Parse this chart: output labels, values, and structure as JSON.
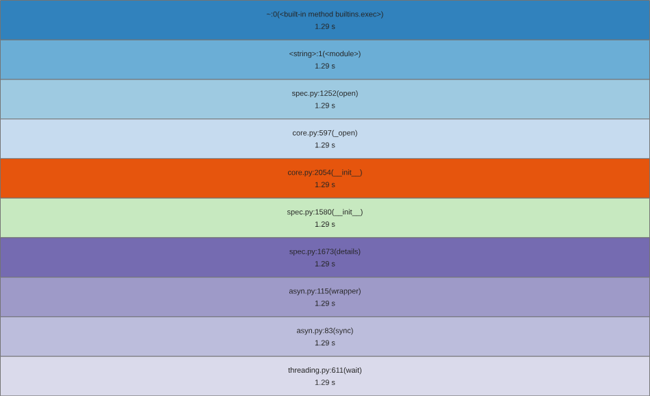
{
  "chart_data": {
    "type": "bar",
    "orientation": "horizontal",
    "categories": [
      "~:0(<built-in method builtins.exec>)",
      "<string>:1(<module>)",
      "spec.py:1252(open)",
      "core.py:597(_open)",
      "core.py:2054(__init__)",
      "spec.py:1580(__init__)",
      "spec.py:1673(details)",
      "asyn.py:115(wrapper)",
      "asyn.py:83(sync)",
      "threading.py:611(wait)"
    ],
    "values": [
      1.29,
      1.29,
      1.29,
      1.29,
      1.29,
      1.29,
      1.29,
      1.29,
      1.29,
      1.29
    ],
    "value_labels": [
      "1.29 s",
      "1.29 s",
      "1.29 s",
      "1.29 s",
      "1.29 s",
      "1.29 s",
      "1.29 s",
      "1.29 s",
      "1.29 s",
      "1.29 s"
    ],
    "colors": [
      "#3182bd",
      "#6baed6",
      "#9ecae1",
      "#c6dbef",
      "#e6550d",
      "#c7e9c0",
      "#756bb1",
      "#9e9ac8",
      "#bcbddc",
      "#dadaeb"
    ]
  }
}
